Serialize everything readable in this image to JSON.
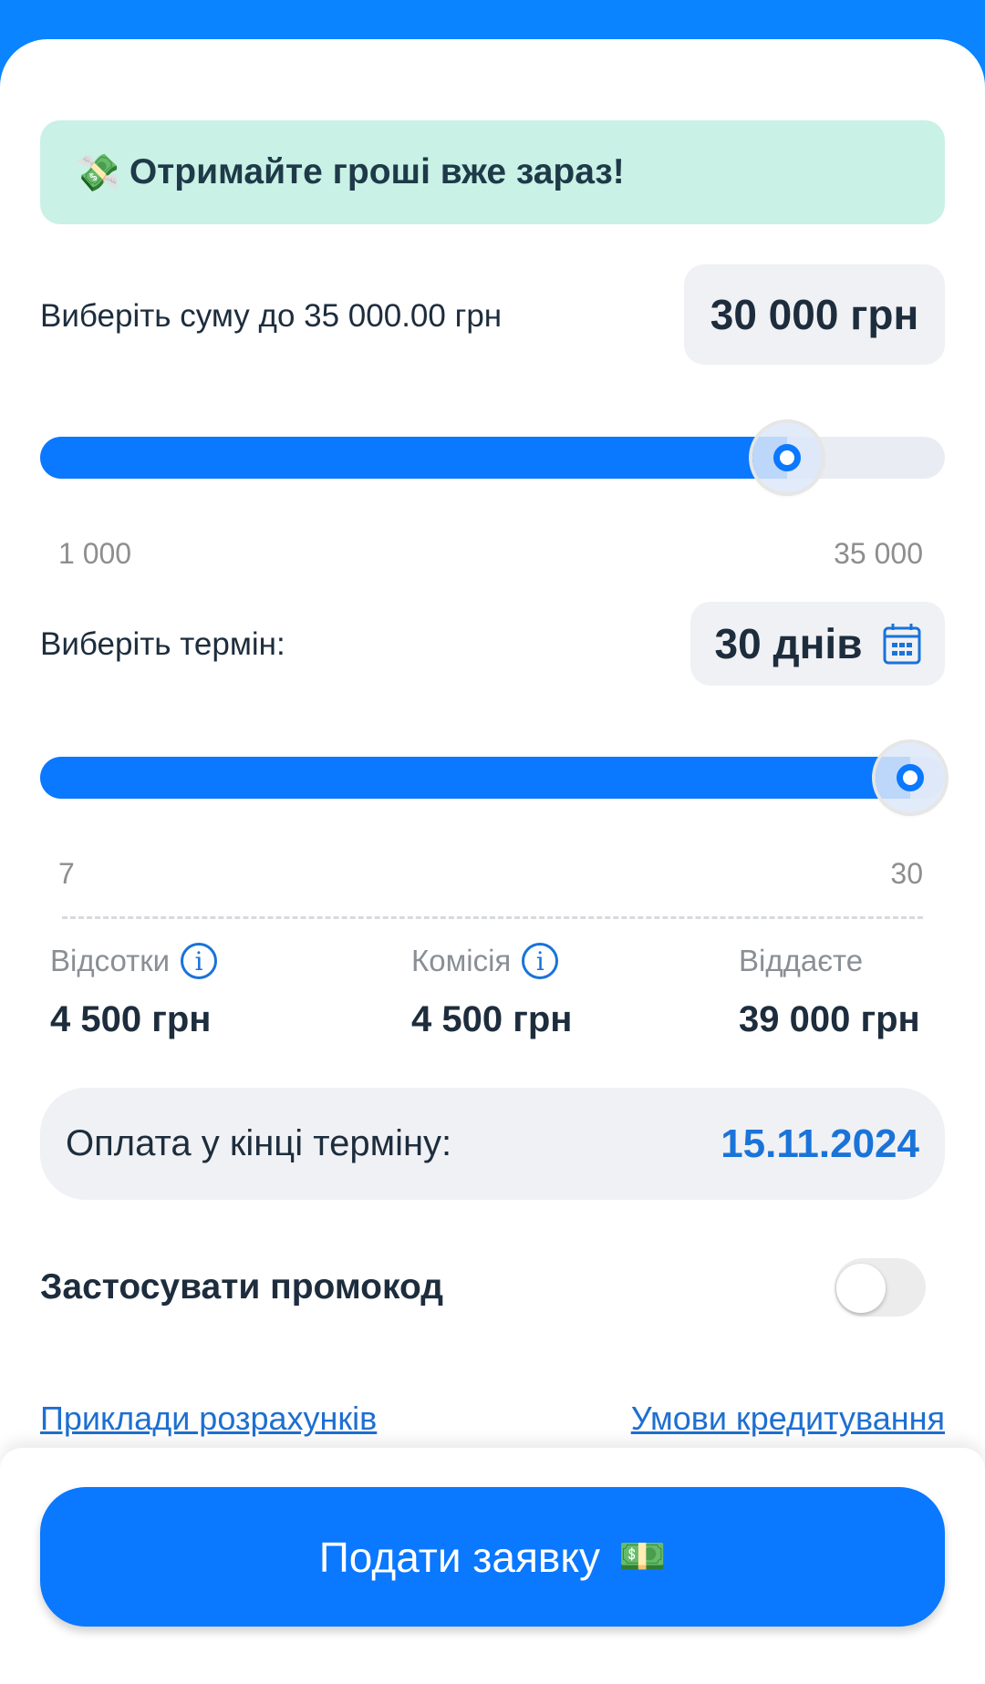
{
  "colors": {
    "accent": "#0a78ff",
    "banner_bg": "#c9f1e6",
    "date": "#1a73d9",
    "link": "#1e6fd0"
  },
  "banner": {
    "icon": "money-with-wings-icon",
    "emoji": "💸",
    "text": "Отримайте гроші вже зараз!"
  },
  "amount": {
    "label": "Виберіть суму до 35 000.00 грн",
    "display": "30 000 грн",
    "value": 30000,
    "min": 1000,
    "max": 35000,
    "min_label": "1 000",
    "max_label": "35 000"
  },
  "term": {
    "label": "Виберіть термін:",
    "display": "30 днів",
    "icon": "calendar-icon",
    "value": 30,
    "min": 7,
    "max": 30,
    "min_label": "7",
    "max_label": "30"
  },
  "stats": [
    {
      "label": "Відсотки",
      "value": "4 500 грн",
      "info": true
    },
    {
      "label": "Комісія",
      "value": "4 500 грн",
      "info": true
    },
    {
      "label": "Віддаєте",
      "value": "39 000 грн",
      "info": false
    }
  ],
  "payment": {
    "label": "Оплата у кінці терміну:",
    "date": "15.11.2024"
  },
  "promo": {
    "label": "Застосувати промокод",
    "enabled": false
  },
  "links": {
    "examples": "Приклади розрахунків",
    "terms": "Умови кредитування"
  },
  "submit": {
    "label": "Подати заявку",
    "emoji": "💵"
  }
}
